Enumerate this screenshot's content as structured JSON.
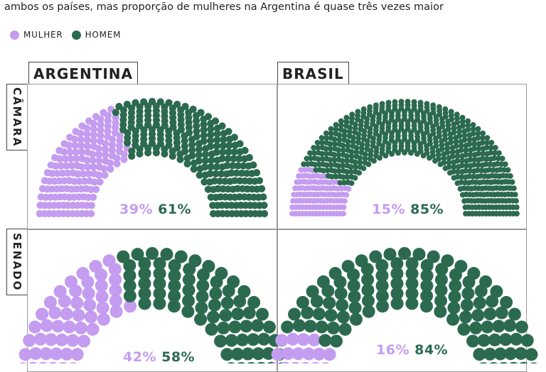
{
  "subtitle": "ambos os países, mas proporção de mulheres na Argentina é quase três vezes maior",
  "legend": [
    {
      "label": "MULHER",
      "color": "#c49cf0"
    },
    {
      "label": "HOMEM",
      "color": "#2c6a4f"
    }
  ],
  "colors": {
    "mulher": "#c49cf0",
    "homem": "#2c6a4f"
  },
  "columns": [
    "ARGENTINA",
    "BRASIL"
  ],
  "rows": [
    "CÂMARA",
    "SENADO"
  ],
  "chart_data": [
    {
      "type": "parliament",
      "country": "ARGENTINA",
      "chamber": "CÂMARA",
      "series": [
        {
          "name": "MULHER",
          "percent": 39
        },
        {
          "name": "HOMEM",
          "percent": 61
        }
      ],
      "labels": {
        "mulher": "39%",
        "homem": "61%"
      }
    },
    {
      "type": "parliament",
      "country": "BRASIL",
      "chamber": "CÂMARA",
      "series": [
        {
          "name": "MULHER",
          "percent": 15
        },
        {
          "name": "HOMEM",
          "percent": 85
        }
      ],
      "labels": {
        "mulher": "15%",
        "homem": "85%"
      }
    },
    {
      "type": "parliament",
      "country": "ARGENTINA",
      "chamber": "SENADO",
      "series": [
        {
          "name": "MULHER",
          "percent": 42
        },
        {
          "name": "HOMEM",
          "percent": 58
        }
      ],
      "labels": {
        "mulher": "42%",
        "homem": "58%"
      }
    },
    {
      "type": "parliament",
      "country": "BRASIL",
      "chamber": "SENADO",
      "series": [
        {
          "name": "MULHER",
          "percent": 16
        },
        {
          "name": "HOMEM",
          "percent": 84
        }
      ],
      "labels": {
        "mulher": "16%",
        "homem": "84%"
      }
    }
  ]
}
